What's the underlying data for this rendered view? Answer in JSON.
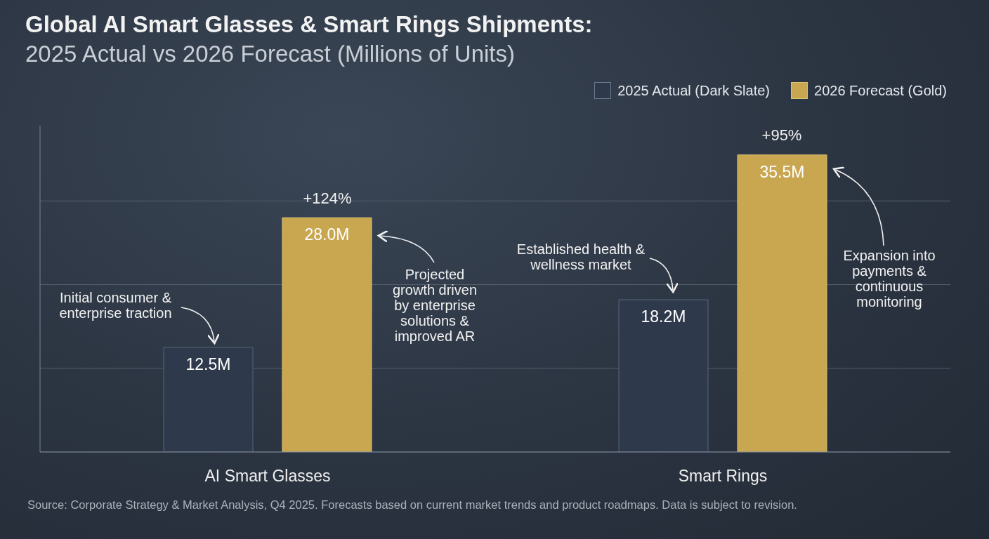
{
  "chart_data": {
    "type": "bar",
    "title": "Global AI Smart Glasses & Smart Rings Shipments:",
    "subtitle": "2025 Actual vs 2026 Forecast (Millions of Units)",
    "categories": [
      "AI Smart Glasses",
      "Smart Rings"
    ],
    "series": [
      {
        "name": "2025 Actual (Dark Slate)",
        "color": "#2e3a4c",
        "values": [
          12.5,
          18.2
        ],
        "value_labels": [
          "12.5M",
          "18.2M"
        ]
      },
      {
        "name": "2026 Forecast (Gold)",
        "color": "#c9a650",
        "values": [
          28.0,
          35.5
        ],
        "value_labels": [
          "28.0M",
          "35.5M"
        ]
      }
    ],
    "relative": false,
    "ylim": [
      0,
      39
    ],
    "yticks": [
      {
        "value": 0,
        "label": null
      },
      {
        "value": 10,
        "label": null
      },
      {
        "value": 20,
        "label": null
      },
      {
        "value": 30,
        "label": null
      }
    ],
    "grid": "y",
    "legend": "top right",
    "annotations": [
      "+124%",
      "+95%",
      "Initial consumer & enterprise traction",
      "Projected growth driven by enterprise solutions & improved AR",
      "Established health & wellness market",
      "Expansion into payments & continuous monitoring",
      "Source: Corporate Strategy & Market Analysis, Q4 2025. Forecasts based on current market trends and product roadmaps. Data is subject to revision."
    ]
  }
}
